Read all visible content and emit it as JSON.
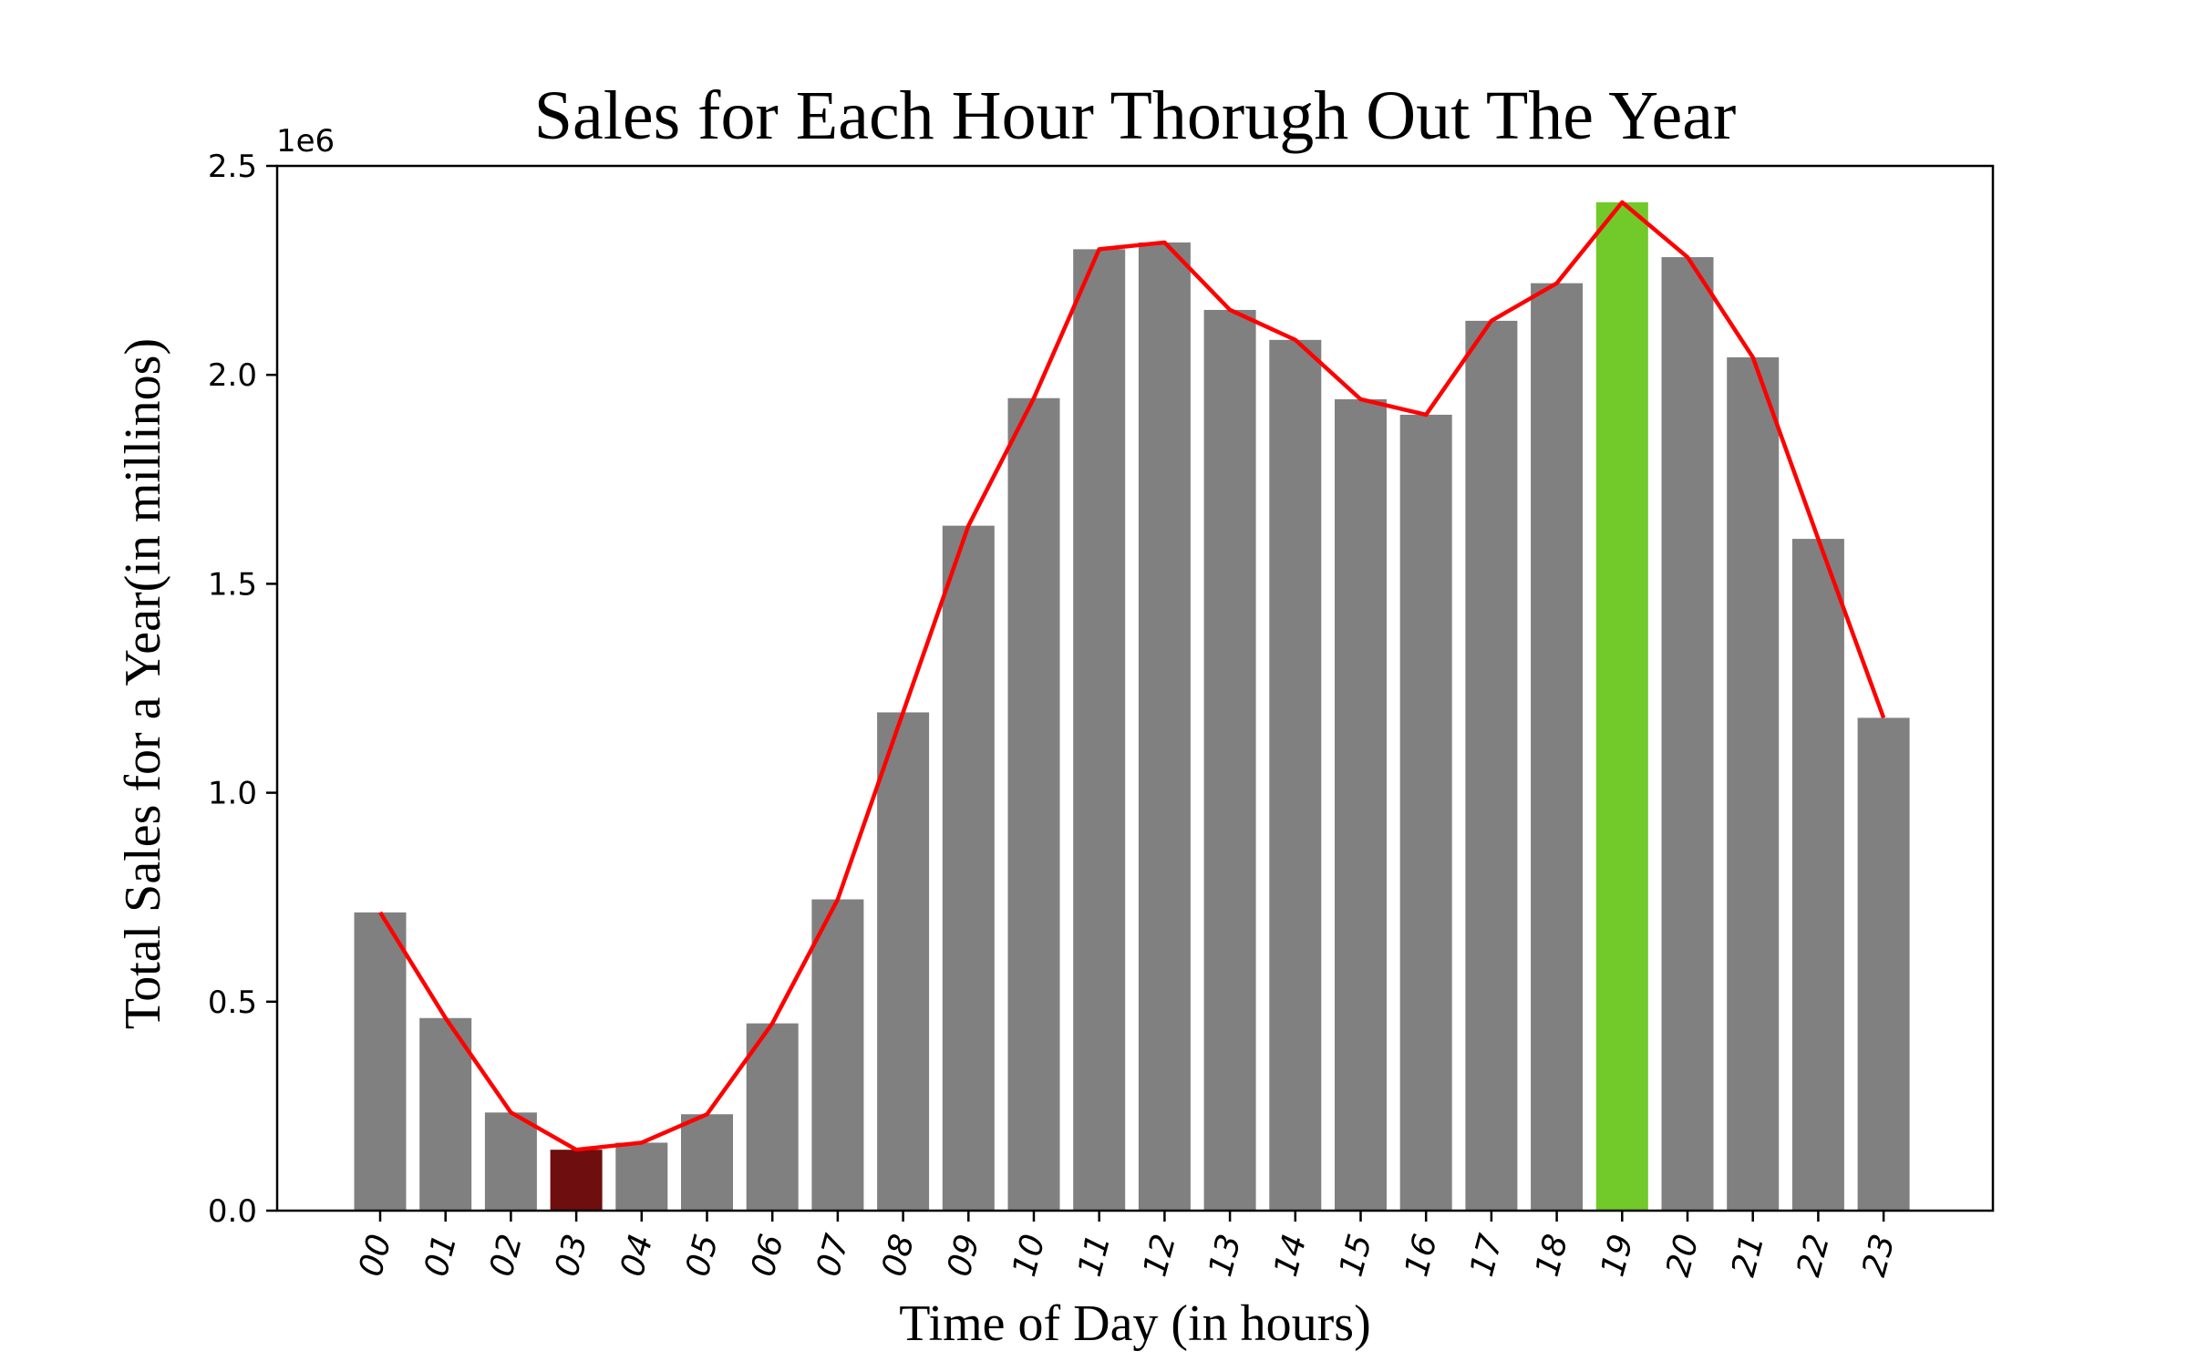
{
  "chart_data": {
    "type": "bar",
    "title": "Sales for Each Hour Thorugh Out The Year",
    "xlabel": "Time of Day (in hours)",
    "ylabel": "Total Sales for a Year(in millinos)",
    "y_offset_label": "1e6",
    "categories": [
      "00",
      "01",
      "02",
      "03",
      "04",
      "05",
      "06",
      "07",
      "08",
      "09",
      "10",
      "11",
      "12",
      "13",
      "14",
      "15",
      "16",
      "17",
      "18",
      "19",
      "20",
      "21",
      "22",
      "23"
    ],
    "values": [
      713721,
      460866,
      234851,
      145757,
      162661,
      230679,
      448113,
      744854,
      1192348,
      1639030,
      1944286,
      2300610,
      2316821,
      2155390,
      2083672,
      1941549,
      1904601,
      2129362,
      2219348,
      2412939,
      2281716,
      2042001,
      1607550,
      1179304
    ],
    "series": [
      {
        "values": [
          713721,
          460866,
          234851,
          145757,
          162661,
          230679,
          448113,
          744854,
          1192348,
          1639030,
          1944286,
          2300610,
          2316821,
          2155390,
          2083672,
          1941549,
          1904601,
          2129362,
          2219348,
          2412939,
          2281716,
          2042001,
          1607550,
          1179304
        ]
      }
    ],
    "ylim": [
      0,
      2500000
    ],
    "yticks": [
      0,
      500000,
      1000000,
      1500000,
      2000000,
      2500000
    ],
    "ytick_labels": [
      "0.0",
      "0.5",
      "1.0",
      "1.5",
      "2.0",
      "2.5"
    ],
    "grid": false,
    "colors": {
      "bar_default": "#808080",
      "bar_min": "#6e0e0e",
      "bar_max": "#72c92a",
      "line": "#ff0000",
      "axes": "#000000"
    },
    "highlight_min_index": 3,
    "highlight_max_index": 19
  }
}
